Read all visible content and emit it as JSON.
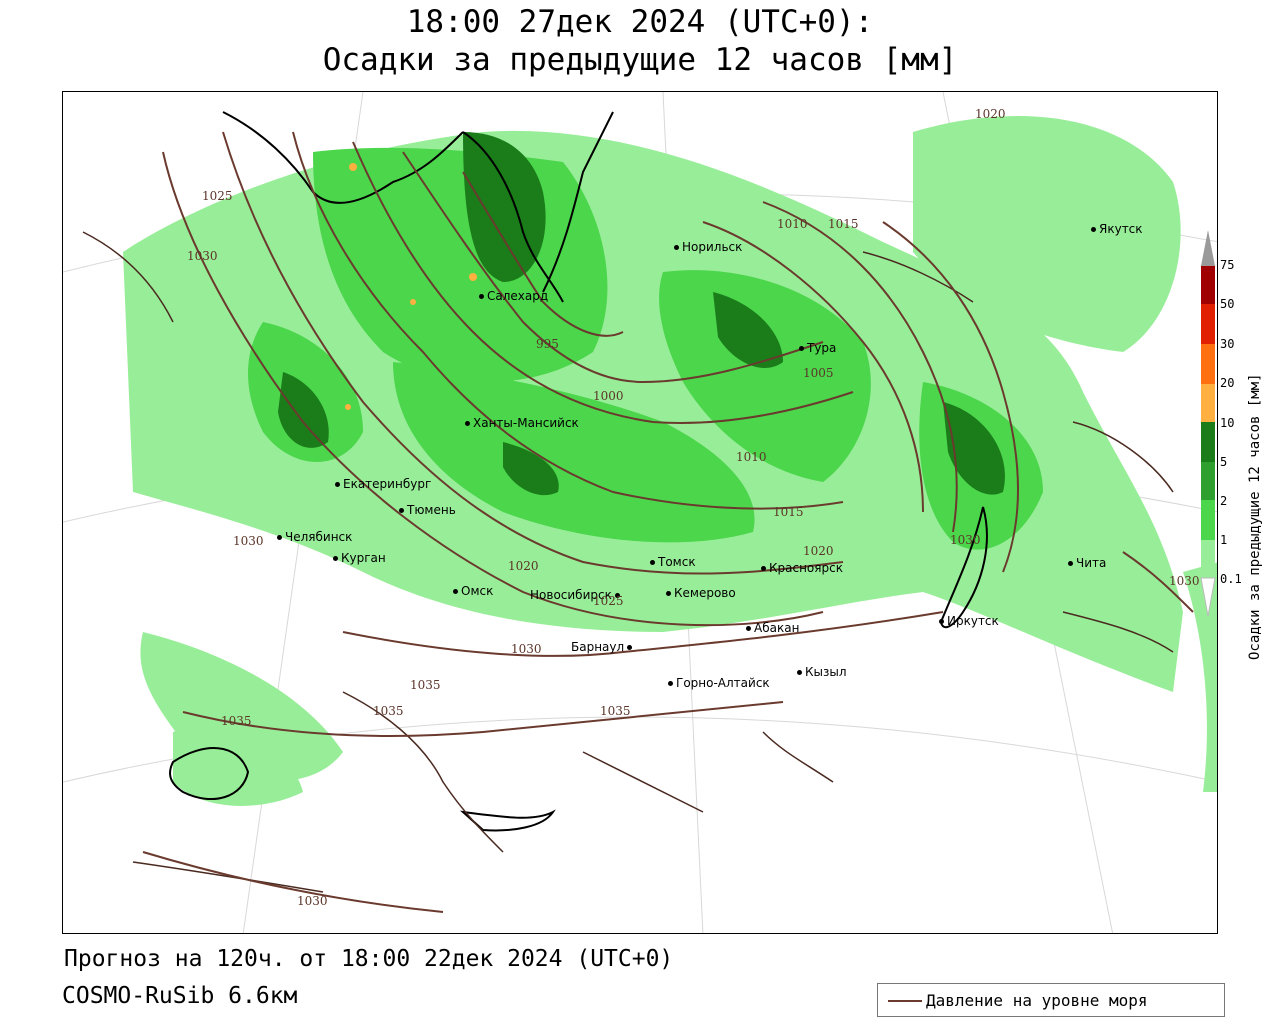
{
  "header": {
    "line1": "18:00 27дек 2024 (UTC+0):",
    "line2": "Осадки за предыдущие 12 часов [мм]"
  },
  "footer": {
    "forecast": "Прогноз на 120ч. от 18:00 22дек 2024 (UTC+0)",
    "model": "COSMO-RuSib 6.6км"
  },
  "pressure_legend": {
    "label": "Давление на уровне моря",
    "color": "#6b3a2e"
  },
  "colorbar": {
    "title": "Осадки за предыдущие 12 часов [мм]",
    "levels": [
      "75",
      "50",
      "30",
      "20",
      "10",
      "5",
      "2",
      "1",
      "0.1"
    ],
    "colors": [
      "#a00000",
      "#e02000",
      "#ff7010",
      "#ffb040",
      "#1a7d1a",
      "#2fa02f",
      "#4cd64c",
      "#98ee98"
    ],
    "overflow_color": "#9a9a9a"
  },
  "cities": [
    {
      "name": "Норильск"
    },
    {
      "name": "Якутск"
    },
    {
      "name": "Салехард"
    },
    {
      "name": "Тура"
    },
    {
      "name": "Ханты-Мансийск"
    },
    {
      "name": "Екатеринбург"
    },
    {
      "name": "Тюмень"
    },
    {
      "name": "Челябинск"
    },
    {
      "name": "Курган"
    },
    {
      "name": "Омск"
    },
    {
      "name": "Новосибирск"
    },
    {
      "name": "Томск"
    },
    {
      "name": "Кемерово"
    },
    {
      "name": "Красноярск"
    },
    {
      "name": "Абакан"
    },
    {
      "name": "Барнаул"
    },
    {
      "name": "Горно-Алтайск"
    },
    {
      "name": "Кызыл"
    },
    {
      "name": "Иркутск"
    },
    {
      "name": "Чита"
    }
  ],
  "isobar_labels": [
    "1025",
    "1030",
    "995",
    "1000",
    "1005",
    "1010",
    "1010",
    "1015",
    "1015",
    "1020",
    "1020",
    "1025",
    "1030",
    "1030",
    "1030",
    "1035",
    "1035",
    "1035",
    "1035",
    "1020",
    "1030",
    "1030",
    "1030"
  ]
}
